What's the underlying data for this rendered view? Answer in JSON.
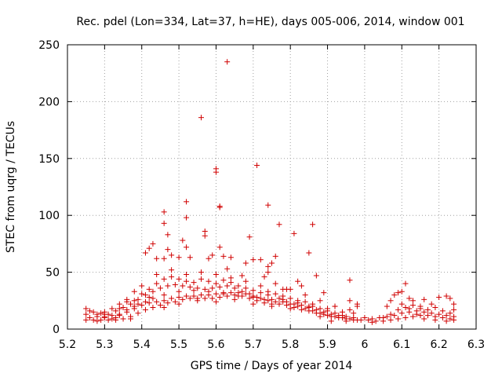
{
  "chart_data": {
    "type": "scatter",
    "title": "Rec. pdel (Lon=334, Lat=37, h=HE), days 005-006, 2014, window 001",
    "xlabel": "GPS time / Days of year 2014",
    "ylabel": "STEC from uqrg / TECUs",
    "xlim": [
      5.2,
      6.3
    ],
    "ylim": [
      0,
      250
    ],
    "xticks": [
      "5.2",
      "5.3",
      "5.4",
      "5.5",
      "5.6",
      "5.7",
      "5.8",
      "5.9",
      "6",
      "6.1",
      "6.2",
      "6.3"
    ],
    "yticks": [
      "0",
      "50",
      "100",
      "150",
      "200",
      "250"
    ],
    "grid": true,
    "marker": "+",
    "color": "#d00000",
    "series": [
      {
        "name": "STEC",
        "points": [
          [
            5.25,
            8
          ],
          [
            5.27,
            8
          ],
          [
            5.29,
            8
          ],
          [
            5.31,
            8
          ],
          [
            5.33,
            8
          ],
          [
            5.35,
            9
          ],
          [
            5.37,
            11
          ],
          [
            5.39,
            14
          ],
          [
            5.41,
            17
          ],
          [
            5.43,
            19
          ],
          [
            5.45,
            21
          ],
          [
            5.47,
            23
          ],
          [
            5.49,
            24
          ],
          [
            5.51,
            26
          ],
          [
            5.53,
            27
          ],
          [
            5.55,
            27
          ],
          [
            5.57,
            27
          ],
          [
            5.59,
            27
          ],
          [
            5.61,
            28
          ],
          [
            5.63,
            29
          ],
          [
            5.65,
            30
          ],
          [
            5.67,
            29
          ],
          [
            5.69,
            27
          ],
          [
            5.71,
            25
          ],
          [
            5.73,
            23
          ],
          [
            5.75,
            22
          ],
          [
            5.77,
            22
          ],
          [
            5.79,
            21
          ],
          [
            5.81,
            19
          ],
          [
            5.83,
            17
          ],
          [
            5.85,
            16
          ],
          [
            5.87,
            14
          ],
          [
            5.89,
            13
          ],
          [
            5.91,
            11
          ],
          [
            5.93,
            10
          ],
          [
            5.95,
            9
          ],
          [
            5.97,
            8
          ],
          [
            5.99,
            8
          ],
          [
            5.26,
            10
          ],
          [
            5.28,
            11
          ],
          [
            5.3,
            11
          ],
          [
            5.32,
            12
          ],
          [
            5.34,
            13
          ],
          [
            5.36,
            15
          ],
          [
            5.38,
            18
          ],
          [
            5.4,
            21
          ],
          [
            5.42,
            23
          ],
          [
            5.44,
            24
          ],
          [
            5.46,
            25
          ],
          [
            5.48,
            27
          ],
          [
            5.5,
            28
          ],
          [
            5.52,
            29
          ],
          [
            5.54,
            29
          ],
          [
            5.56,
            30
          ],
          [
            5.58,
            30
          ],
          [
            5.6,
            31
          ],
          [
            5.62,
            32
          ],
          [
            5.64,
            32
          ],
          [
            5.66,
            32
          ],
          [
            5.68,
            31
          ],
          [
            5.7,
            29
          ],
          [
            5.72,
            27
          ],
          [
            5.74,
            25
          ],
          [
            5.76,
            24
          ],
          [
            5.78,
            24
          ],
          [
            5.8,
            22
          ],
          [
            5.82,
            20
          ],
          [
            5.84,
            18
          ],
          [
            5.86,
            16
          ],
          [
            5.88,
            14
          ],
          [
            5.9,
            12
          ],
          [
            5.92,
            11
          ],
          [
            5.94,
            10
          ],
          [
            5.96,
            9
          ],
          [
            5.98,
            8
          ],
          [
            5.25,
            13
          ],
          [
            5.27,
            15
          ],
          [
            5.29,
            14
          ],
          [
            5.31,
            13
          ],
          [
            5.33,
            16
          ],
          [
            5.35,
            19
          ],
          [
            5.37,
            22
          ],
          [
            5.39,
            26
          ],
          [
            5.41,
            30
          ],
          [
            5.43,
            33
          ],
          [
            5.45,
            36
          ],
          [
            5.47,
            38
          ],
          [
            5.49,
            39
          ],
          [
            5.51,
            38
          ],
          [
            5.53,
            37
          ],
          [
            5.55,
            36
          ],
          [
            5.57,
            35
          ],
          [
            5.59,
            36
          ],
          [
            5.61,
            37
          ],
          [
            5.63,
            38
          ],
          [
            5.65,
            36
          ],
          [
            5.67,
            33
          ],
          [
            5.69,
            31
          ],
          [
            5.71,
            28
          ],
          [
            5.73,
            26
          ],
          [
            5.75,
            26
          ],
          [
            5.77,
            27
          ],
          [
            5.79,
            24
          ],
          [
            5.81,
            22
          ],
          [
            5.83,
            21
          ],
          [
            5.85,
            19
          ],
          [
            5.87,
            17
          ],
          [
            5.89,
            15
          ],
          [
            5.91,
            13
          ],
          [
            5.93,
            12
          ],
          [
            5.95,
            11
          ],
          [
            5.97,
            10
          ],
          [
            5.26,
            16
          ],
          [
            5.28,
            13
          ],
          [
            5.3,
            10
          ],
          [
            5.32,
            9
          ],
          [
            5.34,
            12
          ],
          [
            5.36,
            17
          ],
          [
            5.38,
            25
          ],
          [
            5.4,
            31
          ],
          [
            5.42,
            35
          ],
          [
            5.44,
            40
          ],
          [
            5.46,
            44
          ],
          [
            5.48,
            46
          ],
          [
            5.5,
            44
          ],
          [
            5.52,
            42
          ],
          [
            5.54,
            41
          ],
          [
            5.56,
            44
          ],
          [
            5.58,
            42
          ],
          [
            5.6,
            40
          ],
          [
            5.62,
            43
          ],
          [
            5.64,
            41
          ],
          [
            5.66,
            38
          ],
          [
            5.68,
            36
          ],
          [
            5.7,
            34
          ],
          [
            5.72,
            32
          ],
          [
            5.74,
            33
          ],
          [
            5.76,
            31
          ],
          [
            5.78,
            29
          ],
          [
            5.8,
            27
          ],
          [
            5.82,
            25
          ],
          [
            5.84,
            24
          ],
          [
            5.86,
            22
          ],
          [
            5.88,
            18
          ],
          [
            5.9,
            16
          ],
          [
            5.92,
            14
          ],
          [
            5.94,
            12
          ],
          [
            5.32,
            18
          ],
          [
            5.34,
            22
          ],
          [
            5.36,
            26
          ],
          [
            5.38,
            33
          ],
          [
            5.4,
            38
          ],
          [
            5.44,
            48
          ],
          [
            5.48,
            52
          ],
          [
            5.52,
            48
          ],
          [
            5.56,
            50
          ],
          [
            5.6,
            48
          ],
          [
            5.64,
            45
          ],
          [
            5.68,
            42
          ],
          [
            5.72,
            38
          ],
          [
            5.76,
            40
          ],
          [
            5.8,
            35
          ],
          [
            5.84,
            30
          ],
          [
            5.88,
            25
          ],
          [
            5.92,
            20
          ],
          [
            5.96,
            17
          ],
          [
            5.98,
            20
          ],
          [
            5.3,
            15
          ],
          [
            5.34,
            18
          ],
          [
            5.38,
            20
          ],
          [
            5.42,
            28
          ],
          [
            5.46,
            30
          ],
          [
            5.5,
            33
          ],
          [
            5.54,
            34
          ],
          [
            5.58,
            33
          ],
          [
            5.62,
            31
          ],
          [
            5.66,
            29
          ],
          [
            5.7,
            28
          ],
          [
            5.74,
            30
          ],
          [
            5.78,
            26
          ],
          [
            5.82,
            23
          ],
          [
            5.86,
            20
          ],
          [
            5.9,
            18
          ],
          [
            5.94,
            15
          ],
          [
            5.25,
            18
          ],
          [
            5.28,
            7
          ],
          [
            5.3,
            13
          ],
          [
            5.33,
            10
          ],
          [
            5.36,
            24
          ],
          [
            5.37,
            9
          ],
          [
            5.39,
            22
          ],
          [
            5.41,
            24
          ],
          [
            5.43,
            27
          ],
          [
            5.46,
            19
          ],
          [
            5.5,
            22
          ],
          [
            5.55,
            25
          ],
          [
            5.6,
            24
          ],
          [
            5.65,
            26
          ],
          [
            5.7,
            22
          ],
          [
            5.75,
            20
          ],
          [
            5.8,
            18
          ],
          [
            5.85,
            20
          ],
          [
            5.88,
            11
          ],
          [
            5.91,
            7
          ],
          [
            5.95,
            7
          ],
          [
            5.97,
            14
          ],
          [
            5.98,
            22
          ],
          [
            5.96,
            25
          ],
          [
            5.92,
            20
          ],
          [
            5.89,
            32
          ],
          [
            5.87,
            47
          ],
          [
            5.83,
            38
          ],
          [
            5.79,
            35
          ],
          [
            5.74,
            50
          ],
          [
            5.41,
            67
          ],
          [
            5.42,
            71
          ],
          [
            5.43,
            75
          ],
          [
            5.44,
            62
          ],
          [
            5.46,
            62
          ],
          [
            5.47,
            70
          ],
          [
            5.48,
            65
          ],
          [
            5.5,
            63
          ],
          [
            5.51,
            78
          ],
          [
            5.52,
            72
          ],
          [
            5.46,
            93
          ],
          [
            5.46,
            103
          ],
          [
            5.47,
            83
          ],
          [
            5.52,
            98
          ],
          [
            5.52,
            112
          ],
          [
            5.53,
            63
          ],
          [
            5.56,
            186
          ],
          [
            5.57,
            82
          ],
          [
            5.57,
            86
          ],
          [
            5.58,
            62
          ],
          [
            5.59,
            65
          ],
          [
            5.6,
            138
          ],
          [
            5.6,
            141
          ],
          [
            5.61,
            107
          ],
          [
            5.61,
            108
          ],
          [
            5.61,
            72
          ],
          [
            5.62,
            64
          ],
          [
            5.63,
            235
          ],
          [
            5.63,
            53
          ],
          [
            5.64,
            63
          ],
          [
            5.67,
            47
          ],
          [
            5.68,
            58
          ],
          [
            5.69,
            81
          ],
          [
            5.7,
            61
          ],
          [
            5.71,
            144
          ],
          [
            5.72,
            61
          ],
          [
            5.73,
            46
          ],
          [
            5.74,
            109
          ],
          [
            5.75,
            58
          ],
          [
            5.76,
            64
          ],
          [
            5.77,
            92
          ],
          [
            5.81,
            84
          ],
          [
            5.85,
            67
          ],
          [
            5.86,
            92
          ],
          [
            5.74,
            55
          ],
          [
            5.78,
            35
          ],
          [
            5.82,
            42
          ],
          [
            5.96,
            43
          ],
          [
            6.01,
            8
          ],
          [
            6.03,
            7
          ],
          [
            6.05,
            7
          ],
          [
            6.07,
            8
          ],
          [
            6.09,
            9
          ],
          [
            6.11,
            10
          ],
          [
            6.13,
            11
          ],
          [
            6.15,
            12
          ],
          [
            6.17,
            12
          ],
          [
            6.19,
            11
          ],
          [
            6.21,
            10
          ],
          [
            6.23,
            9
          ],
          [
            6.02,
            9
          ],
          [
            6.04,
            10
          ],
          [
            6.06,
            11
          ],
          [
            6.08,
            12
          ],
          [
            6.1,
            14
          ],
          [
            6.12,
            15
          ],
          [
            6.14,
            16
          ],
          [
            6.16,
            15
          ],
          [
            6.18,
            14
          ],
          [
            6.2,
            13
          ],
          [
            6.22,
            12
          ],
          [
            6.24,
            11
          ],
          [
            6.0,
            10
          ],
          [
            6.02,
            6
          ],
          [
            6.05,
            10
          ],
          [
            6.07,
            13
          ],
          [
            6.09,
            17
          ],
          [
            6.11,
            19
          ],
          [
            6.13,
            21
          ],
          [
            6.15,
            18
          ],
          [
            6.17,
            17
          ],
          [
            6.19,
            19
          ],
          [
            6.21,
            16
          ],
          [
            6.23,
            14
          ],
          [
            6.24,
            17
          ],
          [
            6.06,
            20
          ],
          [
            6.07,
            25
          ],
          [
            6.08,
            30
          ],
          [
            6.09,
            32
          ],
          [
            6.1,
            33
          ],
          [
            6.11,
            40
          ],
          [
            6.12,
            27
          ],
          [
            6.13,
            25
          ],
          [
            6.16,
            26
          ],
          [
            6.18,
            22
          ],
          [
            6.2,
            28
          ],
          [
            6.22,
            29
          ],
          [
            6.23,
            27
          ],
          [
            6.24,
            22
          ],
          [
            6.14,
            13
          ],
          [
            6.16,
            9
          ],
          [
            6.19,
            8
          ],
          [
            6.22,
            7
          ],
          [
            6.24,
            8
          ],
          [
            6.1,
            22
          ],
          [
            6.12,
            18
          ],
          [
            6.15,
            20
          ]
        ]
      }
    ]
  }
}
